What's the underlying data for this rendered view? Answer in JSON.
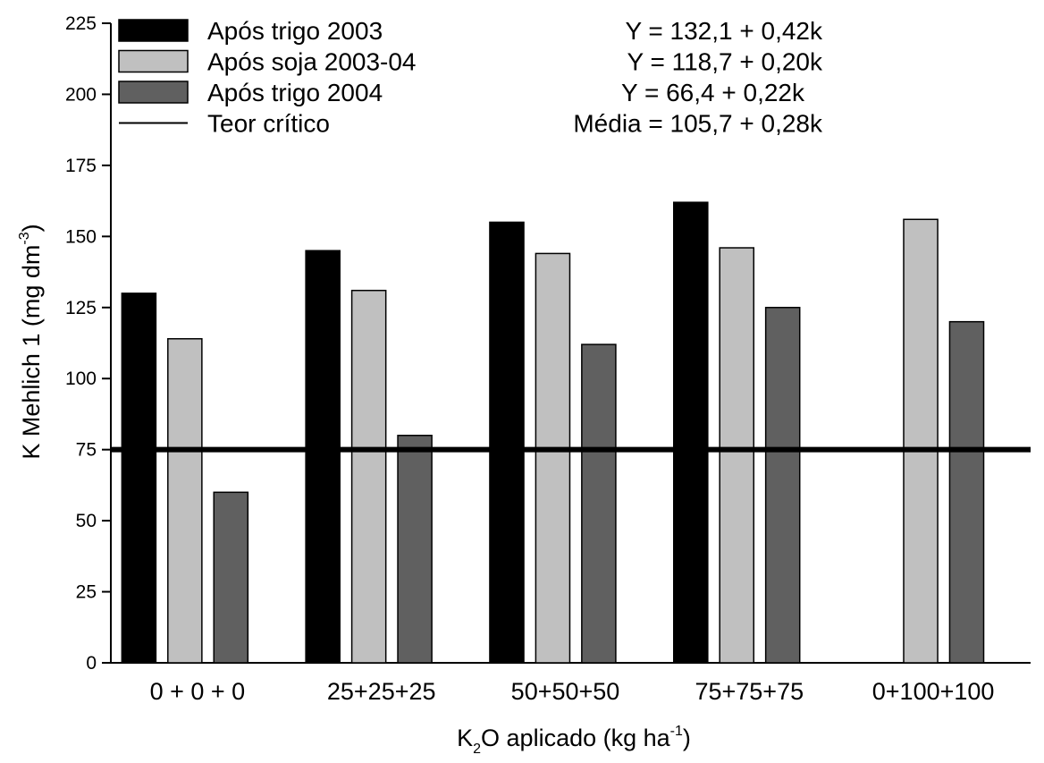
{
  "chart_data": {
    "type": "bar",
    "xlabel": {
      "base": "K",
      "sub": "2",
      "mid": "O aplicado (kg ha",
      "sup": "-1",
      "end": ")"
    },
    "ylabel": {
      "main": "K Mehlich 1 (mg dm",
      "sup": "-3",
      "end": ")"
    },
    "ylim": [
      0,
      225
    ],
    "yticks": [
      0,
      25,
      50,
      75,
      100,
      125,
      150,
      175,
      200,
      225
    ],
    "categories": [
      "0 + 0 + 0",
      "25+25+25",
      "50+50+50",
      "75+75+75",
      "0+100+100"
    ],
    "series": [
      {
        "name": "Após trigo 2003",
        "equation": "Y = 132,1 + 0,42k",
        "color": "#000000",
        "values": [
          130,
          145,
          155,
          162,
          null
        ]
      },
      {
        "name": "Após soja 2003-04",
        "equation": "Y = 118,7 + 0,20k",
        "color": "#c0c0c0",
        "values": [
          114,
          131,
          144,
          146,
          156
        ]
      },
      {
        "name": "Após trigo 2004",
        "equation": "Y = 66,4 + 0,22k",
        "color": "#606060",
        "values": [
          60,
          80,
          112,
          125,
          120
        ]
      }
    ],
    "reference_line": {
      "name": "Teor crítico",
      "equation": "Média = 105,7 + 0,28k",
      "value": 75,
      "color": "#000000"
    },
    "grid": false,
    "legend_position": "top-left"
  }
}
